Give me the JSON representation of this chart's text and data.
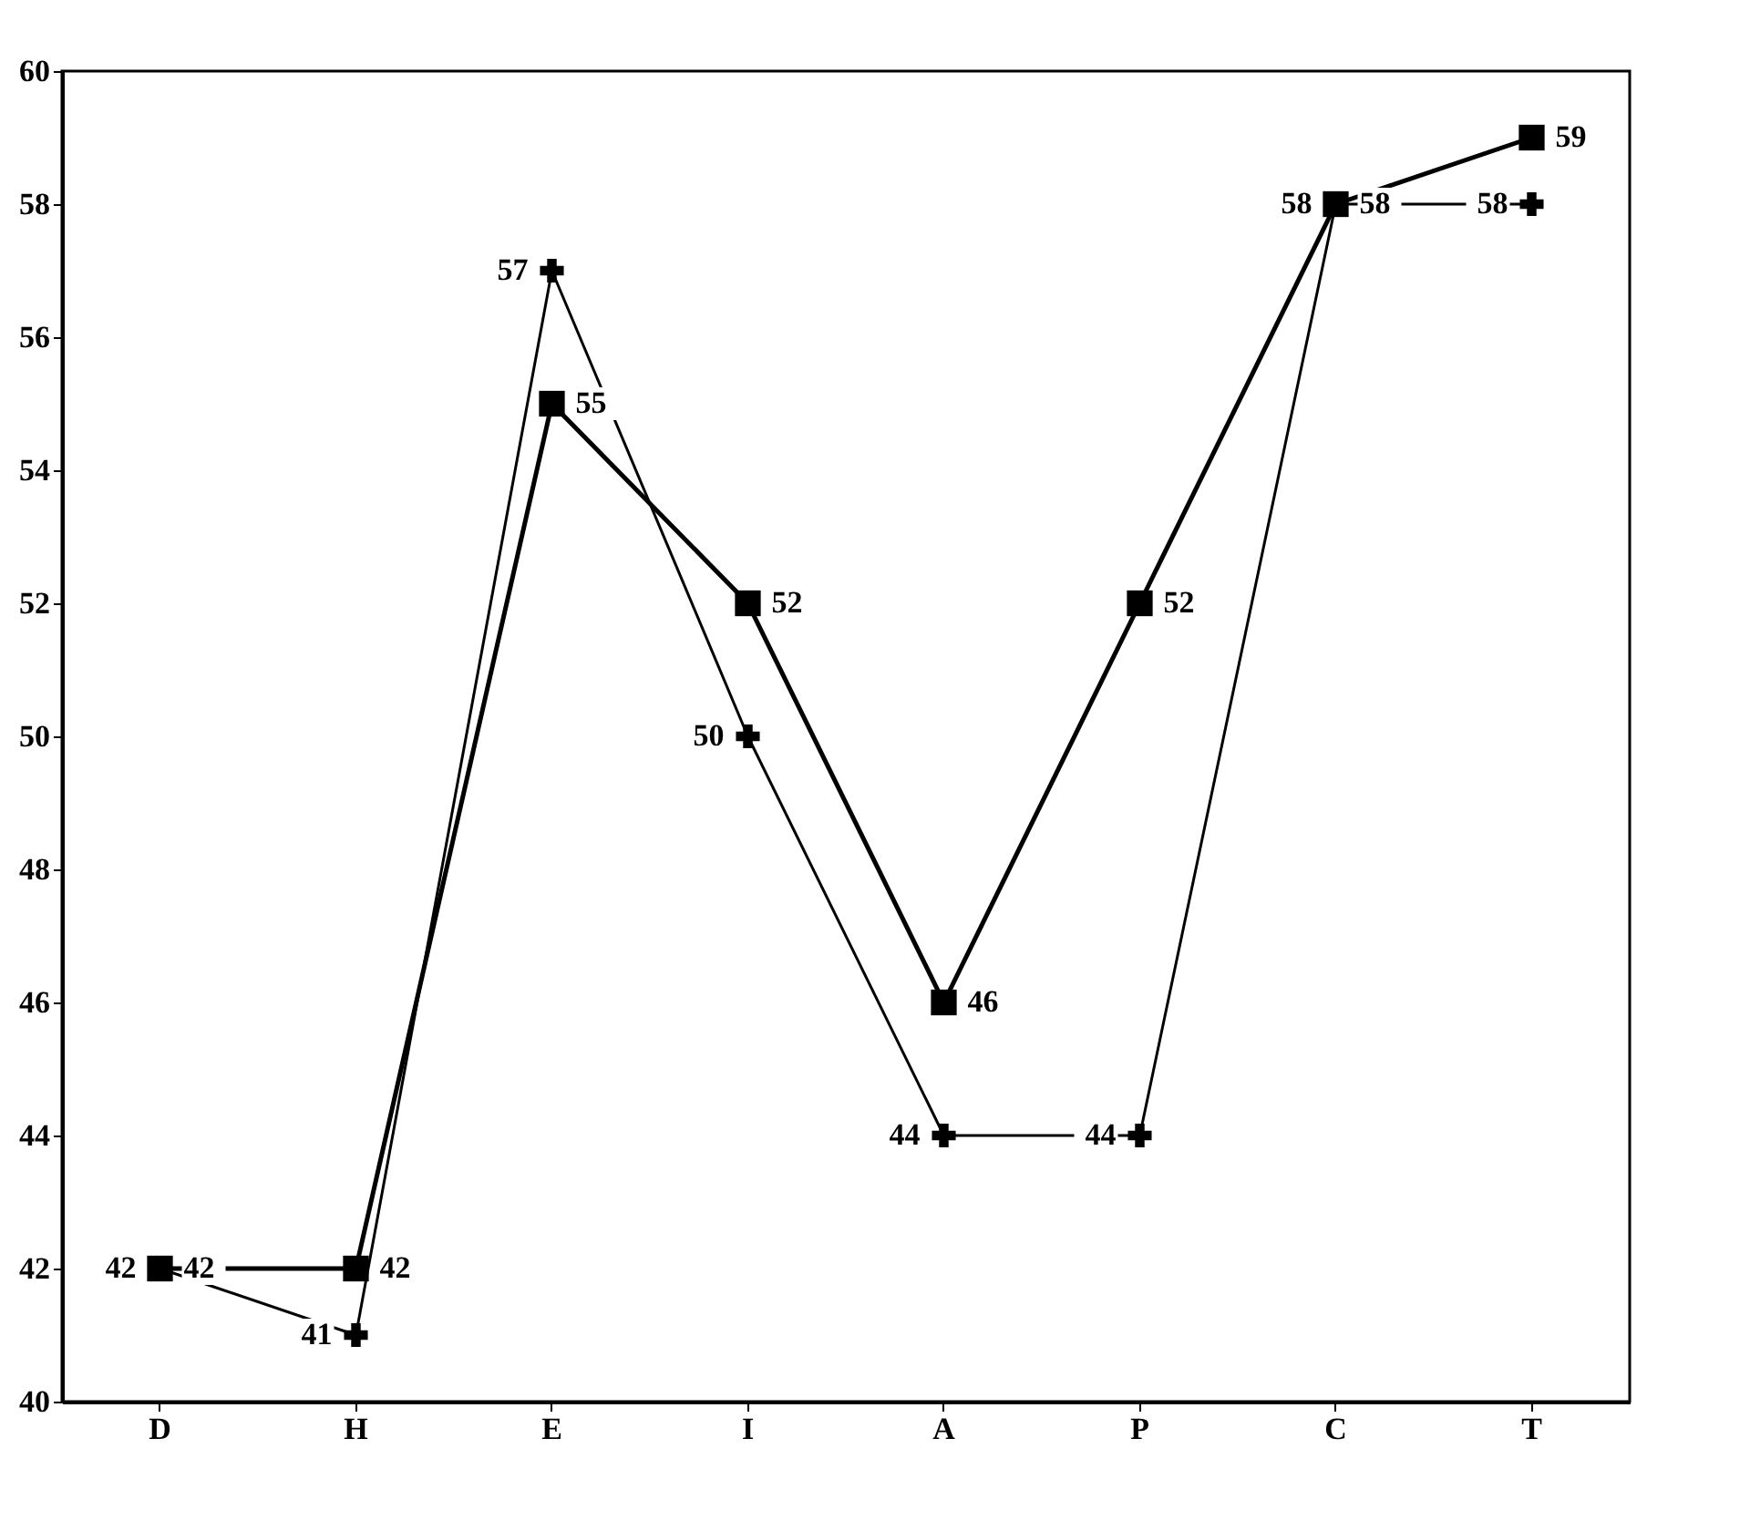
{
  "chart_data": {
    "type": "line",
    "categories": [
      "D",
      "H",
      "E",
      "I",
      "A",
      "P",
      "C",
      "T"
    ],
    "series": [
      {
        "color": "#000000",
        "marker": "square",
        "values": [
          42,
          42,
          55,
          52,
          46,
          52,
          58,
          59
        ]
      },
      {
        "color": "#000000",
        "marker": "cross",
        "values": [
          42,
          41,
          57,
          50,
          44,
          44,
          58,
          58
        ]
      }
    ],
    "ylim": [
      40,
      60
    ],
    "yticks": [
      40,
      42,
      44,
      46,
      48,
      50,
      52,
      54,
      56,
      58,
      60
    ],
    "data_labels": true,
    "line_style": "solid"
  }
}
